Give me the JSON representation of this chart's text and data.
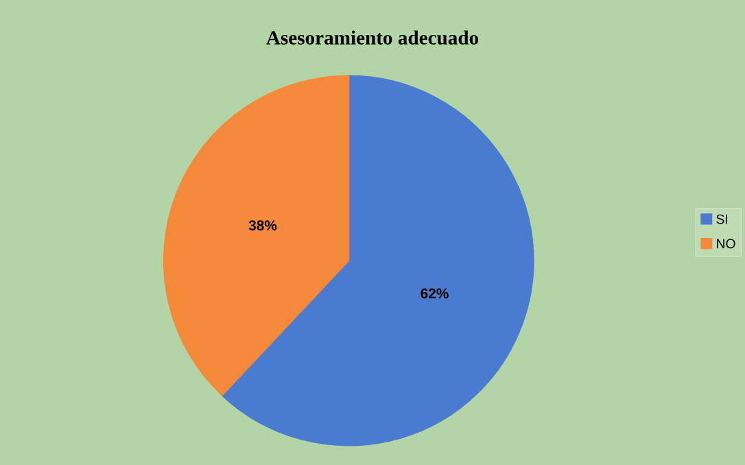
{
  "chart_data": {
    "type": "pie",
    "title": "Asesoramiento adecuado",
    "categories": [
      "SI",
      "NO"
    ],
    "values": [
      62,
      38
    ],
    "colors": [
      "#4a7bd0",
      "#f5893a"
    ],
    "value_labels": [
      "62%",
      "38%"
    ],
    "legend": "right"
  }
}
